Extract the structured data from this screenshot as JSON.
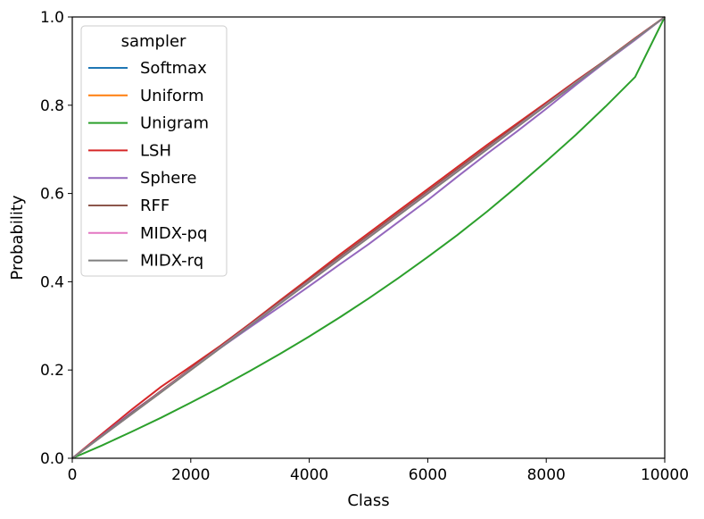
{
  "chart_data": {
    "type": "line",
    "xlabel": "Class",
    "ylabel": "Probability",
    "xlim": [
      0,
      10000
    ],
    "ylim": [
      0,
      1.0
    ],
    "xticks": [
      0,
      2000,
      4000,
      6000,
      8000,
      10000
    ],
    "xtick_labels": [
      "0",
      "2000",
      "4000",
      "6000",
      "8000",
      "10000"
    ],
    "yticks": [
      0.0,
      0.2,
      0.4,
      0.6,
      0.8,
      1.0
    ],
    "ytick_labels": [
      "0.0",
      "0.2",
      "0.4",
      "0.6",
      "0.8",
      "1.0"
    ],
    "grid": false,
    "legend": {
      "title": "sampler",
      "placement": "upper-left"
    },
    "x": [
      0,
      500,
      1000,
      1500,
      2000,
      2500,
      3000,
      3500,
      4000,
      4500,
      5000,
      5500,
      6000,
      6500,
      7000,
      7500,
      8000,
      8500,
      9000,
      9500,
      10000
    ],
    "series": [
      {
        "name": "Softmax",
        "color": "#1f77b4",
        "values": [
          0,
          0.05,
          0.1,
          0.15,
          0.2,
          0.25,
          0.3,
          0.35,
          0.4,
          0.45,
          0.5,
          0.55,
          0.6,
          0.65,
          0.7,
          0.75,
          0.8,
          0.85,
          0.9,
          0.95,
          1.0
        ]
      },
      {
        "name": "Uniform",
        "color": "#ff7f0e",
        "values": [
          0,
          0.05,
          0.1,
          0.15,
          0.2,
          0.25,
          0.3,
          0.35,
          0.4,
          0.45,
          0.5,
          0.55,
          0.6,
          0.65,
          0.7,
          0.75,
          0.8,
          0.85,
          0.9,
          0.95,
          1.0
        ]
      },
      {
        "name": "Unigram",
        "color": "#2ca02c",
        "values": [
          0,
          0.029,
          0.06,
          0.092,
          0.126,
          0.161,
          0.198,
          0.236,
          0.276,
          0.318,
          0.362,
          0.408,
          0.456,
          0.506,
          0.559,
          0.615,
          0.673,
          0.733,
          0.797,
          0.864,
          1.0
        ]
      },
      {
        "name": "LSH",
        "color": "#d62728",
        "values": [
          0,
          0.055,
          0.11,
          0.162,
          0.208,
          0.255,
          0.305,
          0.357,
          0.408,
          0.46,
          0.51,
          0.56,
          0.61,
          0.66,
          0.71,
          0.758,
          0.806,
          0.855,
          0.902,
          0.952,
          1.0
        ]
      },
      {
        "name": "Sphere",
        "color": "#9467bd",
        "values": [
          0,
          0.052,
          0.104,
          0.152,
          0.203,
          0.25,
          0.297,
          0.343,
          0.39,
          0.438,
          0.485,
          0.535,
          0.585,
          0.638,
          0.69,
          0.74,
          0.792,
          0.846,
          0.898,
          0.948,
          1.0
        ]
      },
      {
        "name": "RFF",
        "color": "#8c564b",
        "values": [
          0,
          0.051,
          0.102,
          0.153,
          0.203,
          0.253,
          0.303,
          0.354,
          0.404,
          0.455,
          0.505,
          0.555,
          0.605,
          0.655,
          0.705,
          0.754,
          0.803,
          0.853,
          0.902,
          0.951,
          1.0
        ]
      },
      {
        "name": "MIDX-pq",
        "color": "#e377c2",
        "values": [
          0,
          0.05,
          0.1,
          0.151,
          0.201,
          0.251,
          0.301,
          0.351,
          0.401,
          0.451,
          0.501,
          0.551,
          0.601,
          0.651,
          0.701,
          0.751,
          0.801,
          0.851,
          0.9,
          0.95,
          1.0
        ]
      },
      {
        "name": "MIDX-rq",
        "color": "#7f7f7f",
        "values": [
          0,
          0.05,
          0.1,
          0.15,
          0.2,
          0.25,
          0.3,
          0.35,
          0.4,
          0.45,
          0.5,
          0.55,
          0.6,
          0.65,
          0.7,
          0.75,
          0.8,
          0.85,
          0.9,
          0.95,
          1.0
        ]
      }
    ]
  }
}
